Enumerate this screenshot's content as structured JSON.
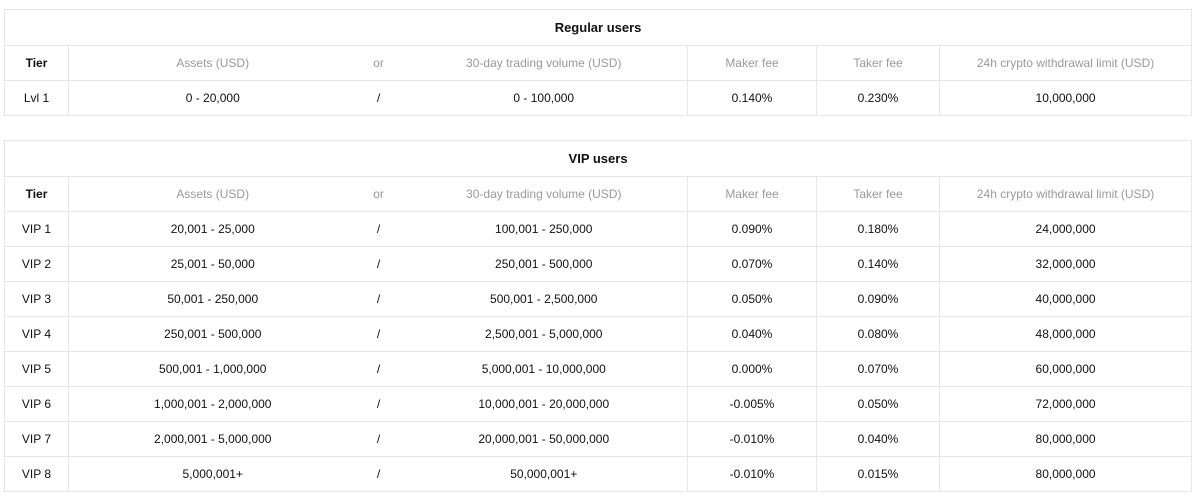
{
  "columns": {
    "tier": "Tier",
    "assets": "Assets (USD)",
    "or": "or",
    "volume": "30-day trading volume (USD)",
    "maker": "Maker fee",
    "taker": "Taker fee",
    "withdrawal": "24h crypto withdrawal limit (USD)"
  },
  "regular": {
    "title": "Regular users",
    "rows": [
      {
        "tier": "Lvl 1",
        "assets": "0 - 20,000",
        "sep": "/",
        "volume": "0 - 100,000",
        "maker": "0.140%",
        "taker": "0.230%",
        "withdrawal": "10,000,000"
      }
    ]
  },
  "vip": {
    "title": "VIP users",
    "rows": [
      {
        "tier": "VIP 1",
        "assets": "20,001 - 25,000",
        "sep": "/",
        "volume": "100,001 - 250,000",
        "maker": "0.090%",
        "taker": "0.180%",
        "withdrawal": "24,000,000"
      },
      {
        "tier": "VIP 2",
        "assets": "25,001 - 50,000",
        "sep": "/",
        "volume": "250,001 - 500,000",
        "maker": "0.070%",
        "taker": "0.140%",
        "withdrawal": "32,000,000"
      },
      {
        "tier": "VIP 3",
        "assets": "50,001 - 250,000",
        "sep": "/",
        "volume": "500,001 - 2,500,000",
        "maker": "0.050%",
        "taker": "0.090%",
        "withdrawal": "40,000,000"
      },
      {
        "tier": "VIP 4",
        "assets": "250,001 - 500,000",
        "sep": "/",
        "volume": "2,500,001 - 5,000,000",
        "maker": "0.040%",
        "taker": "0.080%",
        "withdrawal": "48,000,000"
      },
      {
        "tier": "VIP 5",
        "assets": "500,001 - 1,000,000",
        "sep": "/",
        "volume": "5,000,001 - 10,000,000",
        "maker": "0.000%",
        "taker": "0.070%",
        "withdrawal": "60,000,000"
      },
      {
        "tier": "VIP 6",
        "assets": "1,000,001 - 2,000,000",
        "sep": "/",
        "volume": "10,000,001 - 20,000,000",
        "maker": "-0.005%",
        "taker": "0.050%",
        "withdrawal": "72,000,000"
      },
      {
        "tier": "VIP 7",
        "assets": "2,000,001 - 5,000,000",
        "sep": "/",
        "volume": "20,000,001 - 50,000,000",
        "maker": "-0.010%",
        "taker": "0.040%",
        "withdrawal": "80,000,000"
      },
      {
        "tier": "VIP 8",
        "assets": "5,000,001+",
        "sep": "/",
        "volume": "50,000,001+",
        "maker": "-0.010%",
        "taker": "0.015%",
        "withdrawal": "80,000,000"
      }
    ]
  }
}
